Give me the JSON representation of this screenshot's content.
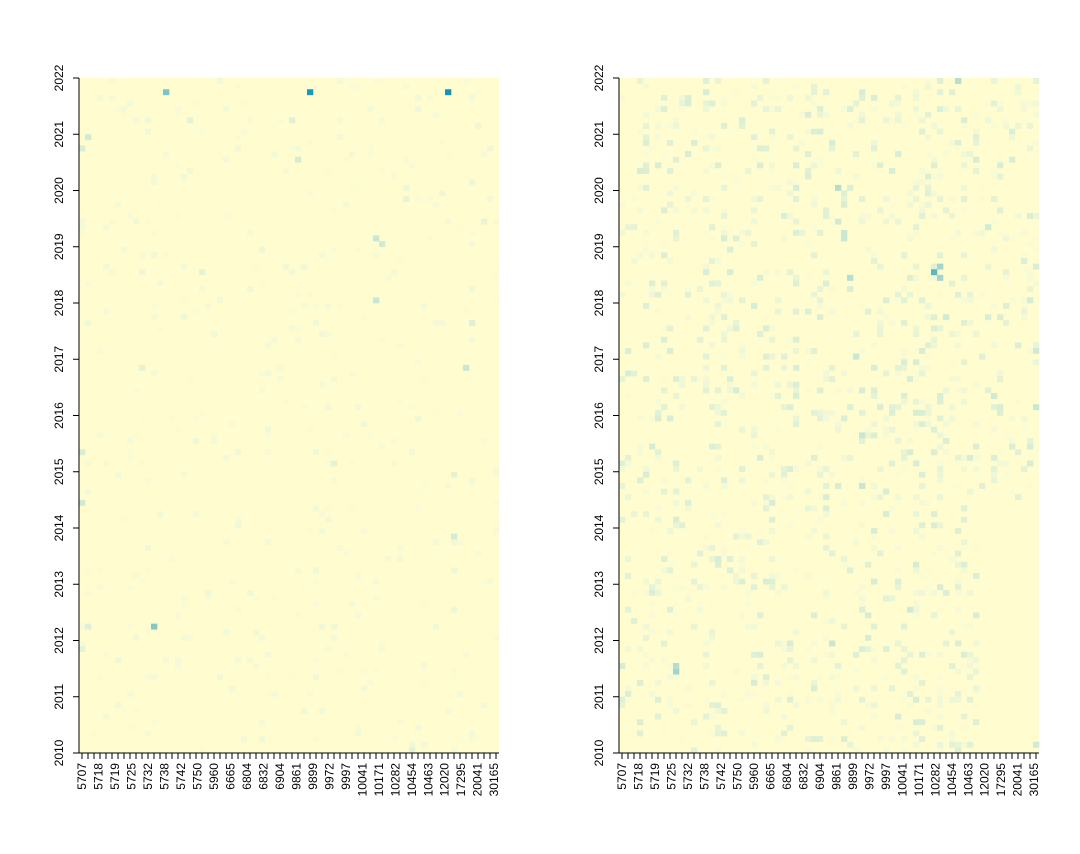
{
  "chart_data": [
    {
      "type": "heatmap",
      "panel": "left",
      "x_tick_labels": [
        "5707",
        "5718",
        "5719",
        "5725",
        "5732",
        "5738",
        "5742",
        "5750",
        "5960",
        "6665",
        "6804",
        "6832",
        "6904",
        "9861",
        "9899",
        "9972",
        "9997",
        "10041",
        "10171",
        "10282",
        "10454",
        "10463",
        "12020",
        "17295",
        "20041",
        "30165"
      ],
      "y_tick_labels": [
        "2010",
        "2011",
        "2012",
        "2013",
        "2014",
        "2015",
        "2016",
        "2017",
        "2018",
        "2019",
        "2020",
        "2021",
        "2022"
      ],
      "n_columns": 70,
      "n_rows": 120,
      "colors": {
        "background": "#fffdd0",
        "low": "#f3f9d6",
        "mid": "#c9e7d3",
        "high": "#0a8fb8"
      },
      "base_intensity": 0.05,
      "highlights": [
        {
          "col": 12,
          "row": 97,
          "value": 0.68
        },
        {
          "col": 38,
          "row": 2,
          "value": 0.95
        },
        {
          "col": 61,
          "row": 2,
          "value": 0.98
        },
        {
          "col": 14,
          "row": 2,
          "value": 0.7
        },
        {
          "col": 0,
          "row": 12,
          "value": 0.4
        },
        {
          "col": 1,
          "row": 10,
          "value": 0.45
        },
        {
          "col": 36,
          "row": 14,
          "value": 0.42
        },
        {
          "col": 35,
          "row": 7,
          "value": 0.35
        },
        {
          "col": 49,
          "row": 28,
          "value": 0.5
        },
        {
          "col": 50,
          "row": 29,
          "value": 0.45
        },
        {
          "col": 49,
          "row": 39,
          "value": 0.5
        },
        {
          "col": 64,
          "row": 51,
          "value": 0.5
        },
        {
          "col": 0,
          "row": 75,
          "value": 0.45
        },
        {
          "col": 0,
          "row": 66,
          "value": 0.4
        },
        {
          "col": 62,
          "row": 81,
          "value": 0.42
        },
        {
          "col": 1,
          "row": 97,
          "value": 0.35
        },
        {
          "col": 10,
          "row": 51,
          "value": 0.3
        },
        {
          "col": 62,
          "row": 70,
          "value": 0.3
        },
        {
          "col": 54,
          "row": 21,
          "value": 0.28
        },
        {
          "col": 65,
          "row": 43,
          "value": 0.35
        },
        {
          "col": 42,
          "row": 68,
          "value": 0.3
        },
        {
          "col": 20,
          "row": 34,
          "value": 0.3
        },
        {
          "col": 0,
          "row": 101,
          "value": 0.3
        },
        {
          "col": 55,
          "row": 119,
          "value": 0.3
        },
        {
          "col": 18,
          "row": 7,
          "value": 0.3
        },
        {
          "col": 67,
          "row": 25,
          "value": 0.28
        }
      ]
    },
    {
      "type": "heatmap",
      "panel": "right",
      "x_tick_labels": [
        "5707",
        "5718",
        "5719",
        "5725",
        "5732",
        "5738",
        "5742",
        "5750",
        "5960",
        "6665",
        "6804",
        "6832",
        "6904",
        "9861",
        "9899",
        "9972",
        "9997",
        "10041",
        "10171",
        "10282",
        "10454",
        "10463",
        "12020",
        "17295",
        "20041",
        "30165"
      ],
      "y_tick_labels": [
        "2010",
        "2011",
        "2012",
        "2013",
        "2014",
        "2015",
        "2016",
        "2017",
        "2018",
        "2019",
        "2020",
        "2021",
        "2022"
      ],
      "n_columns": 70,
      "n_rows": 120,
      "colors": {
        "background": "#fffdd0",
        "low": "#f3f9d6",
        "mid": "#c9e7d3",
        "high": "#0a8fb8"
      },
      "base_intensity": 0.18,
      "active_region": {
        "from_col": 60,
        "row_top_limit": 0,
        "row_bottom_limit": 74,
        "note_empty_below_row": 74
      },
      "highlights": [
        {
          "col": 52,
          "row": 34,
          "value": 0.78
        },
        {
          "col": 53,
          "row": 33,
          "value": 0.6
        },
        {
          "col": 53,
          "row": 35,
          "value": 0.6
        },
        {
          "col": 38,
          "row": 35,
          "value": 0.55
        },
        {
          "col": 37,
          "row": 27,
          "value": 0.5
        },
        {
          "col": 37,
          "row": 28,
          "value": 0.5
        },
        {
          "col": 36,
          "row": 25,
          "value": 0.45
        },
        {
          "col": 36,
          "row": 19,
          "value": 0.55
        },
        {
          "col": 39,
          "row": 49,
          "value": 0.5
        },
        {
          "col": 40,
          "row": 63,
          "value": 0.5
        },
        {
          "col": 40,
          "row": 72,
          "value": 0.5
        },
        {
          "col": 35,
          "row": 100,
          "value": 0.5
        },
        {
          "col": 9,
          "row": 105,
          "value": 0.6
        },
        {
          "col": 9,
          "row": 104,
          "value": 0.55
        },
        {
          "col": 56,
          "row": 0,
          "value": 0.55
        },
        {
          "col": 70,
          "row": 118,
          "value": 0.45
        },
        {
          "col": 69,
          "row": 58,
          "value": 0.5
        },
        {
          "col": 69,
          "row": 48,
          "value": 0.45
        },
        {
          "col": 62,
          "row": 56,
          "value": 0.45
        },
        {
          "col": 68,
          "row": 68,
          "value": 0.4
        },
        {
          "col": 19,
          "row": 55,
          "value": 0.4
        },
        {
          "col": 16,
          "row": 85,
          "value": 0.4
        },
        {
          "col": 42,
          "row": 89,
          "value": 0.4
        },
        {
          "col": 48,
          "row": 94,
          "value": 0.45
        },
        {
          "col": 54,
          "row": 42,
          "value": 0.45
        },
        {
          "col": 61,
          "row": 26,
          "value": 0.45
        },
        {
          "col": 68,
          "row": 39,
          "value": 0.42
        },
        {
          "col": 11,
          "row": 13,
          "value": 0.4
        }
      ]
    }
  ]
}
